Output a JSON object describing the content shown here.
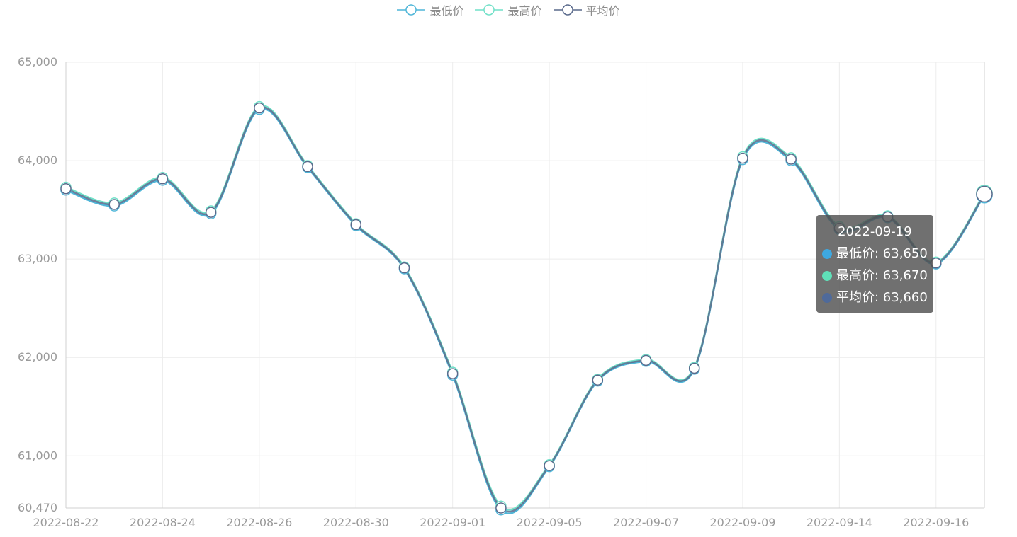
{
  "legend": [
    {
      "name": "最低价",
      "color": "#4fb6d8"
    },
    {
      "name": "最高价",
      "color": "#71e0c8"
    },
    {
      "name": "平均价",
      "color": "#5a6a8c"
    }
  ],
  "tooltip": {
    "title": "2022-09-19",
    "rows": [
      {
        "label": "最低价",
        "value": "63,650",
        "color": "#3ea8e0"
      },
      {
        "label": "最高价",
        "value": "63,670",
        "color": "#5fe0b8"
      },
      {
        "label": "平均价",
        "value": "63,660",
        "color": "#4f6a9a"
      }
    ]
  },
  "chart_data": {
    "type": "line",
    "smooth": true,
    "categories": [
      "2022-08-22",
      "2022-08-23",
      "2022-08-24",
      "2022-08-25",
      "2022-08-26",
      "2022-08-29",
      "2022-08-30",
      "2022-08-31",
      "2022-09-01",
      "2022-09-02",
      "2022-09-05",
      "2022-09-06",
      "2022-09-07",
      "2022-09-08",
      "2022-09-09",
      "2022-09-13",
      "2022-09-14",
      "2022-09-15",
      "2022-09-16",
      "2022-09-19"
    ],
    "xtick_labels": [
      "2022-08-22",
      "2022-08-24",
      "2022-08-26",
      "2022-08-30",
      "2022-09-01",
      "2022-09-05",
      "2022-09-07",
      "2022-09-09",
      "2022-09-14",
      "2022-09-16"
    ],
    "yticks": [
      "60,470",
      "61,000",
      "62,000",
      "63,000",
      "64,000",
      "65,000"
    ],
    "ylim": [
      60470,
      65000
    ],
    "grid": true,
    "legend_position": "top-center",
    "series": [
      {
        "name": "最低价",
        "color": "#4fb6d8",
        "values": [
          63700,
          63540,
          63800,
          63460,
          64520,
          63930,
          63340,
          62900,
          61820,
          60450,
          60890,
          61760,
          61960,
          61880,
          64010,
          64000,
          63300,
          63420,
          62950,
          63650
        ]
      },
      {
        "name": "最高价",
        "color": "#71e0c8",
        "values": [
          63730,
          63570,
          63830,
          63490,
          64550,
          63950,
          63360,
          62920,
          61850,
          60490,
          60910,
          61780,
          61980,
          61900,
          64040,
          64030,
          63330,
          63440,
          62970,
          63670
        ]
      },
      {
        "name": "平均价",
        "color": "#5a6a8c",
        "values": [
          63715,
          63555,
          63815,
          63475,
          64535,
          63940,
          63350,
          62910,
          61835,
          60470,
          60900,
          61770,
          61970,
          61890,
          64025,
          64015,
          63315,
          63430,
          62960,
          63660
        ]
      }
    ]
  }
}
